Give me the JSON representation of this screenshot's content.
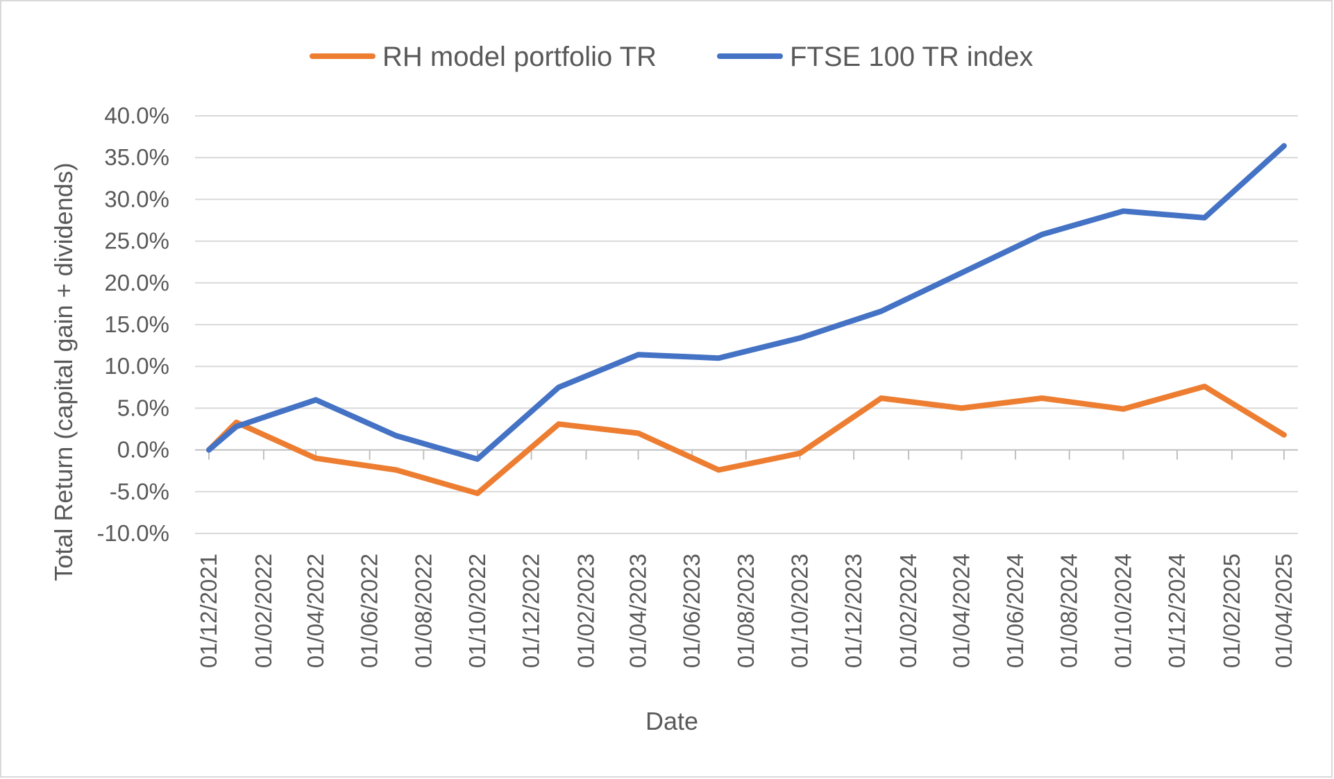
{
  "chart_data": {
    "type": "line",
    "title": "",
    "xlabel": "Date",
    "ylabel": "Total Return (capital gain + dividends)",
    "x_tick_labels": [
      "01/12/2021",
      "01/02/2022",
      "01/04/2022",
      "01/06/2022",
      "01/08/2022",
      "01/10/2022",
      "01/12/2022",
      "01/02/2023",
      "01/04/2023",
      "01/06/2023",
      "01/08/2023",
      "01/10/2023",
      "01/12/2023",
      "01/02/2024",
      "01/04/2024",
      "01/06/2024",
      "01/08/2024",
      "01/10/2024",
      "01/12/2024",
      "01/02/2025",
      "01/04/2025"
    ],
    "x_range": [
      "2021-12-01",
      "2025-04-01"
    ],
    "y_tick_labels": [
      "40.0%",
      "35.0%",
      "30.0%",
      "25.0%",
      "20.0%",
      "15.0%",
      "10.0%",
      "5.0%",
      "0.0%",
      "-5.0%",
      "-10.0%"
    ],
    "ylim": [
      -10,
      40
    ],
    "y_unit": "%",
    "grid": true,
    "legend": "top",
    "series": [
      {
        "name": "RH model portfolio TR",
        "color": "#ED7D31",
        "points": [
          [
            "2021-12-01",
            0.0
          ],
          [
            "2022-01-01",
            3.3
          ],
          [
            "2022-04-01",
            -1.0
          ],
          [
            "2022-07-01",
            -2.4
          ],
          [
            "2022-10-01",
            -5.2
          ],
          [
            "2023-01-01",
            3.1
          ],
          [
            "2023-04-01",
            2.0
          ],
          [
            "2023-07-01",
            -2.4
          ],
          [
            "2023-10-01",
            -0.4
          ],
          [
            "2024-01-01",
            6.2
          ],
          [
            "2024-04-01",
            5.0
          ],
          [
            "2024-07-01",
            6.2
          ],
          [
            "2024-10-01",
            4.9
          ],
          [
            "2025-01-01",
            7.6
          ],
          [
            "2025-04-01",
            1.8
          ]
        ]
      },
      {
        "name": "FTSE 100 TR index",
        "color": "#4472C4",
        "points": [
          [
            "2021-12-01",
            0.0
          ],
          [
            "2022-01-01",
            2.8
          ],
          [
            "2022-04-01",
            6.0
          ],
          [
            "2022-07-01",
            1.7
          ],
          [
            "2022-10-01",
            -1.1
          ],
          [
            "2023-01-01",
            7.5
          ],
          [
            "2023-04-01",
            11.4
          ],
          [
            "2023-07-01",
            11.0
          ],
          [
            "2023-10-01",
            13.4
          ],
          [
            "2024-01-01",
            16.6
          ],
          [
            "2024-04-01",
            21.2
          ],
          [
            "2024-07-01",
            25.8
          ],
          [
            "2024-10-01",
            28.6
          ],
          [
            "2025-01-01",
            27.8
          ],
          [
            "2025-04-01",
            36.4
          ]
        ]
      }
    ]
  }
}
